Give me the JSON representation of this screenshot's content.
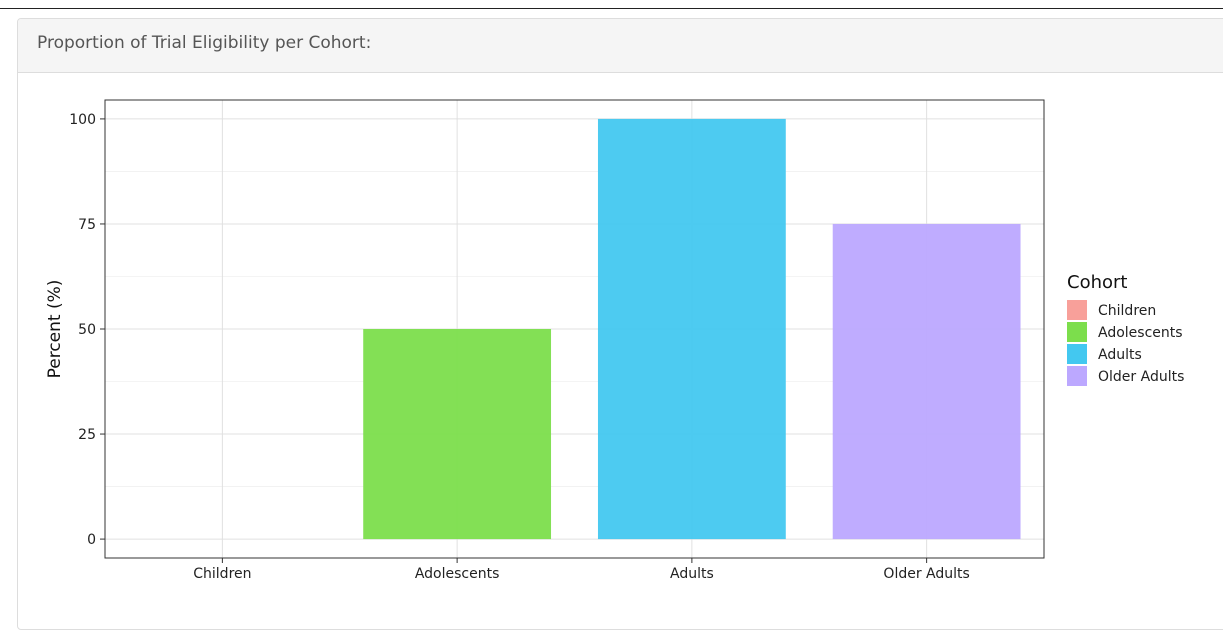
{
  "panel": {
    "title": "Proportion of Trial Eligibility per Cohort:"
  },
  "chart_data": {
    "type": "bar",
    "title": "",
    "xlabel": "",
    "ylabel": "Percent (%)",
    "categories": [
      "Children",
      "Adolescents",
      "Adults",
      "Older Adults"
    ],
    "values": [
      0,
      50,
      100,
      75
    ],
    "colors": [
      "#F8A09A",
      "#7CDE4C",
      "#43C8F0",
      "#BCA8FF"
    ],
    "ylim": [
      -4.5,
      104.5
    ],
    "yticks": [
      0,
      25,
      50,
      75,
      100
    ],
    "grid": true,
    "legend": {
      "title": "Cohort",
      "position": "right",
      "entries": [
        "Children",
        "Adolescents",
        "Adults",
        "Older Adults"
      ]
    }
  }
}
